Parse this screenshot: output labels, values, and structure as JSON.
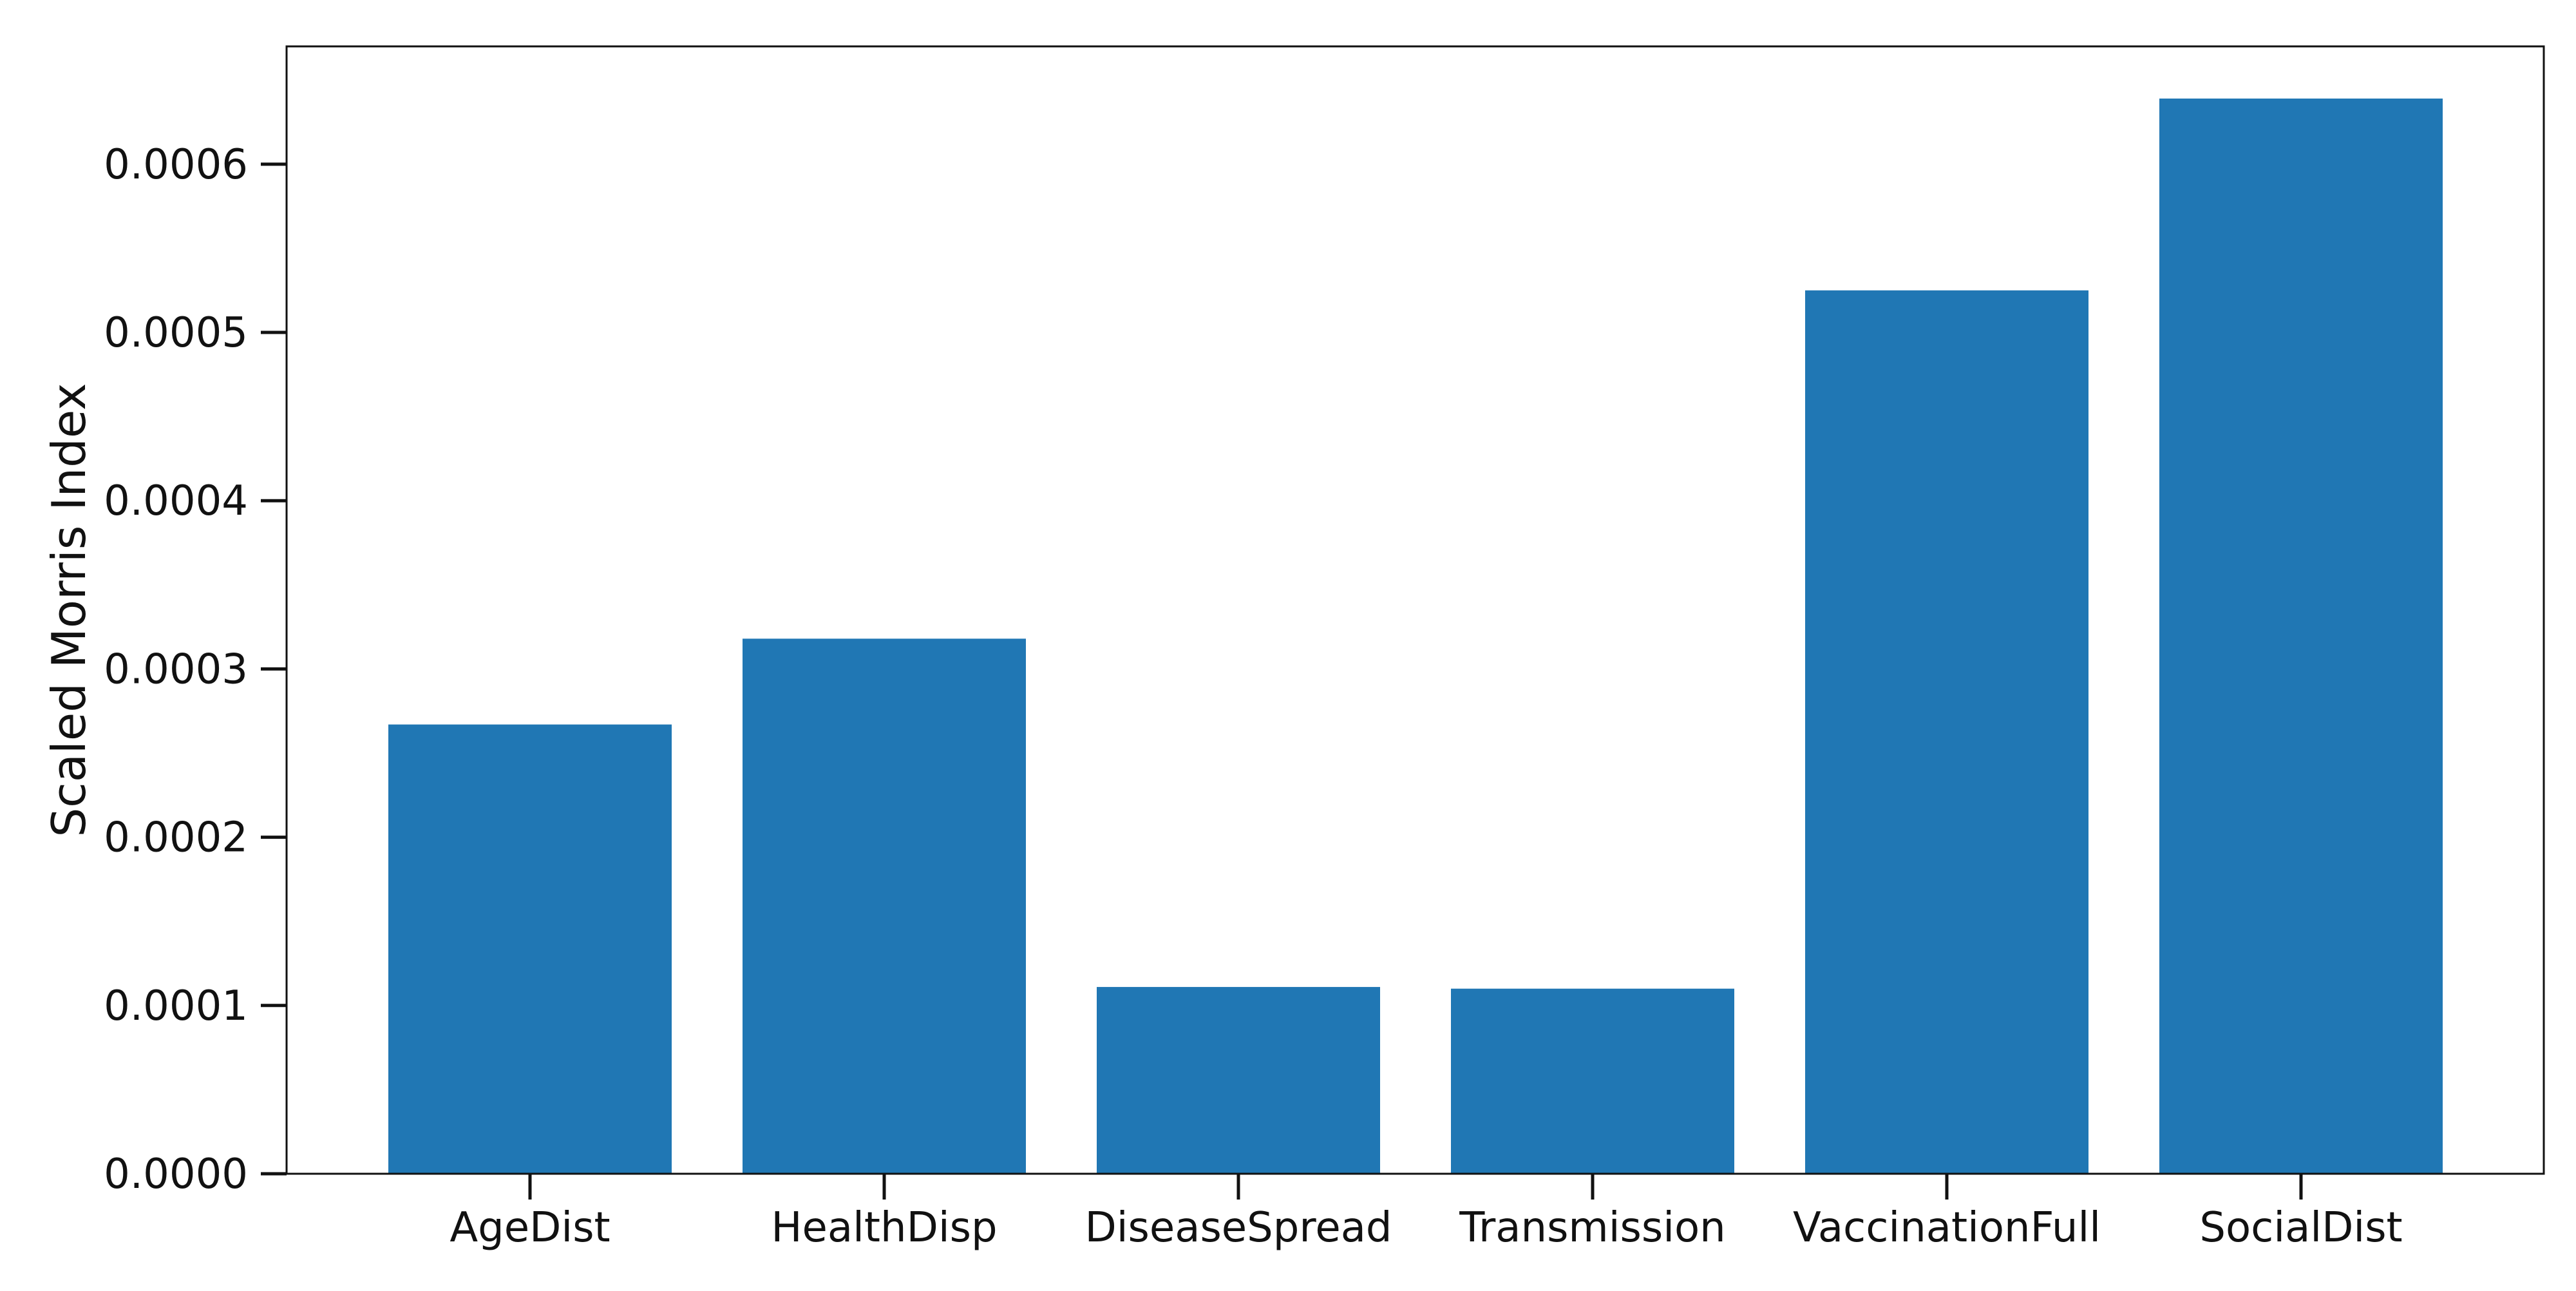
{
  "chart_data": {
    "type": "bar",
    "title": "",
    "xlabel": "",
    "ylabel": "Scaled Morris Index",
    "categories": [
      "AgeDist",
      "HealthDisp",
      "DiseaseSpread",
      "Transmission",
      "VaccinationFull",
      "SocialDist"
    ],
    "values": [
      0.000267,
      0.000318,
      0.000111,
      0.00011,
      0.000525,
      0.000639
    ],
    "ylim": [
      0,
      0.00067
    ],
    "yticks": [
      0.0,
      0.0001,
      0.0002,
      0.0003,
      0.0004,
      0.0005,
      0.0006
    ],
    "ytick_labels": [
      "0.0000",
      "0.0001",
      "0.0002",
      "0.0003",
      "0.0004",
      "0.0005",
      "0.0006"
    ],
    "grid": false,
    "legend": false,
    "bar_color": "#2077b4",
    "axis_color": "#111111"
  }
}
